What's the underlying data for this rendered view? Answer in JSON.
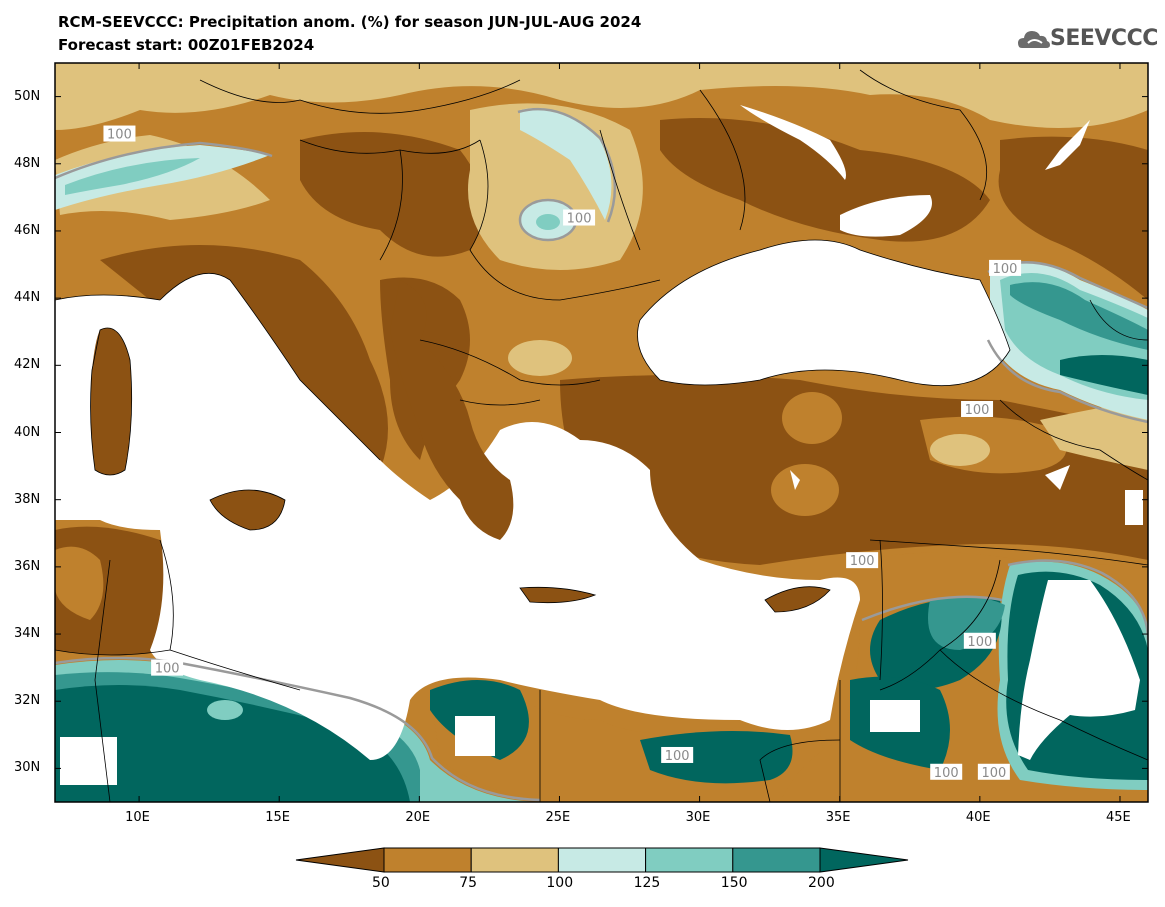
{
  "header": {
    "title": "RCM-SEEVCCC: Precipitation anom. (%) for season JUN-JUL-AUG 2024",
    "subtitle": "Forecast start: 00Z01FEB2024",
    "logo_text": "SEEVCCC",
    "logo_icon": "cloud-icon"
  },
  "map": {
    "lon_range": [
      7,
      46
    ],
    "lat_range": [
      29,
      51
    ],
    "lon_ticks": [
      "10E",
      "15E",
      "20E",
      "25E",
      "30E",
      "35E",
      "40E",
      "45E"
    ],
    "lat_ticks": [
      "50N",
      "48N",
      "46N",
      "44N",
      "42N",
      "40N",
      "38N",
      "36N",
      "34N",
      "32N",
      "30N"
    ],
    "contour_label": "100",
    "colors": {
      "below_50": "#8c5213",
      "50_75": "#bf812d",
      "75_100": "#dfc27d",
      "100_125": "#c7eae5",
      "125_150": "#80cdc1",
      "150_200": "#35978f",
      "above_200": "#01665e",
      "sea": "#ffffff"
    }
  },
  "colorbar": {
    "labels": [
      "50",
      "75",
      "100",
      "125",
      "150",
      "200"
    ],
    "colors": [
      "#8c5213",
      "#bf812d",
      "#dfc27d",
      "#c7eae5",
      "#80cdc1",
      "#35978f",
      "#01665e"
    ]
  }
}
